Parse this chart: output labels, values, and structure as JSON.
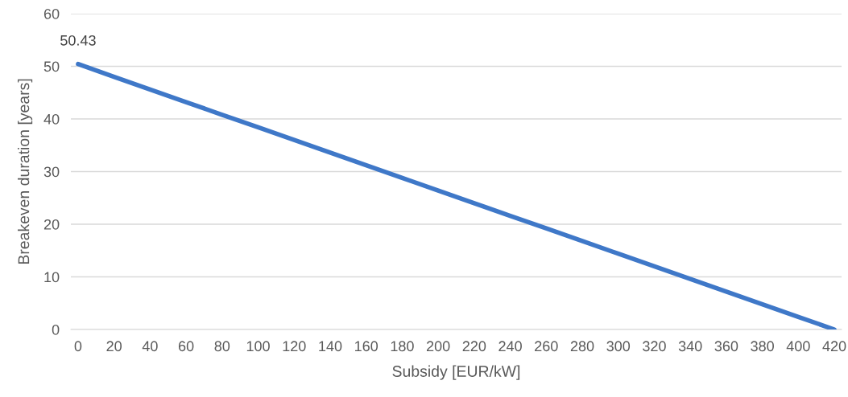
{
  "chart_data": {
    "type": "line",
    "xlabel": "Subsidy [EUR/kW]",
    "ylabel": "Breakeven duration [years]",
    "categories": [
      "0",
      "20",
      "40",
      "60",
      "80",
      "100",
      "120",
      "140",
      "160",
      "180",
      "200",
      "220",
      "240",
      "260",
      "280",
      "300",
      "320",
      "340",
      "360",
      "380",
      "400",
      "420"
    ],
    "series": [
      {
        "color": "#3f78c8",
        "values": [
          50.43,
          48.0,
          45.6,
          43.2,
          40.8,
          38.4,
          36.0,
          33.6,
          31.2,
          28.8,
          26.4,
          24.0,
          21.6,
          19.2,
          16.8,
          14.4,
          12.0,
          9.6,
          7.2,
          4.8,
          2.4,
          0
        ],
        "value_labels": [
          "50.43",
          null,
          null,
          null,
          null,
          null,
          null,
          null,
          null,
          null,
          null,
          null,
          null,
          null,
          null,
          null,
          null,
          null,
          null,
          null,
          null,
          null
        ]
      }
    ],
    "ylim": [
      0,
      60
    ],
    "yticks": [
      0,
      10,
      20,
      30,
      40,
      50,
      60
    ],
    "grid": "y",
    "legend": false,
    "marker": "none",
    "line_style": "solid"
  }
}
